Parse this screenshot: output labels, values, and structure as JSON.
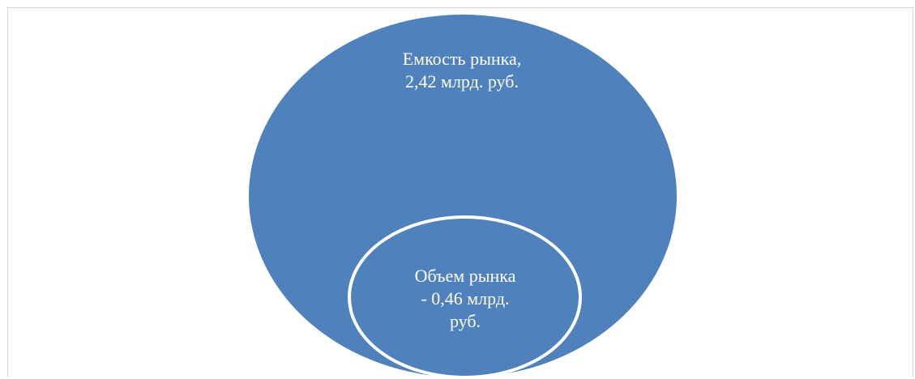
{
  "diagram": {
    "outer": {
      "label_lines": [
        "Емкость рынка,",
        "2,42 млрд. руб."
      ],
      "value": 2.42
    },
    "inner": {
      "label_lines": [
        "Объем рынка",
        "- 0,46 млрд.",
        "руб."
      ],
      "value": 0.46
    },
    "colors": {
      "fill": "#4f81bd",
      "outline": "#ffffff",
      "text": "#ffffff",
      "frame": "#d4d4d4"
    }
  }
}
